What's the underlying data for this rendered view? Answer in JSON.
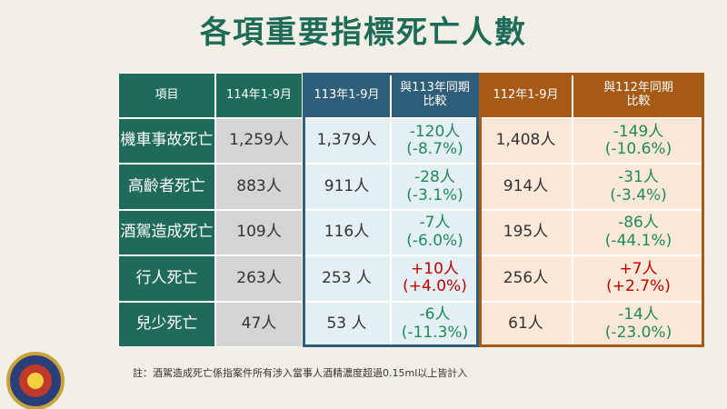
{
  "title": "各項重要指標死亡人數",
  "table": {
    "header": [
      "項目",
      "114年1-9月",
      "113年1-9月",
      [
        "與113年同期",
        "比較"
      ],
      "112年1-9月",
      [
        "與112年同期",
        "比較"
      ]
    ],
    "rows": [
      [
        "機車事故死亡",
        "1,259人",
        "1,379人",
        [
          "-120人",
          "(-8.7%)"
        ],
        "1,408人",
        [
          "-149人",
          "(-10.6%)"
        ]
      ],
      [
        "高齡者死亡",
        "883人",
        "911人",
        [
          "-28人",
          "(-3.1%)"
        ],
        "914人",
        [
          "-31人",
          "(-3.4%)"
        ]
      ],
      [
        "酒駕造成死亡",
        "109人",
        "116人",
        [
          "-7人",
          "(-6.0%)"
        ],
        "195人",
        [
          "-86人",
          "(-44.1%)"
        ]
      ],
      [
        "行人死亡",
        "263人",
        "253 人",
        [
          "+10人",
          "(+4.0%)"
        ],
        "256人",
        [
          "+7人",
          "(+2.7%)"
        ]
      ],
      [
        "兒少死亡",
        "47人",
        "53 人",
        [
          "-6人",
          "(-11.3%)"
        ],
        "61人",
        [
          "-14人",
          "(-23.0%)"
        ]
      ]
    ]
  },
  "note": "註：酒駕造成死亡係指案件所有涉入當事人酒精濃度超過0.15ml以上皆計入"
}
